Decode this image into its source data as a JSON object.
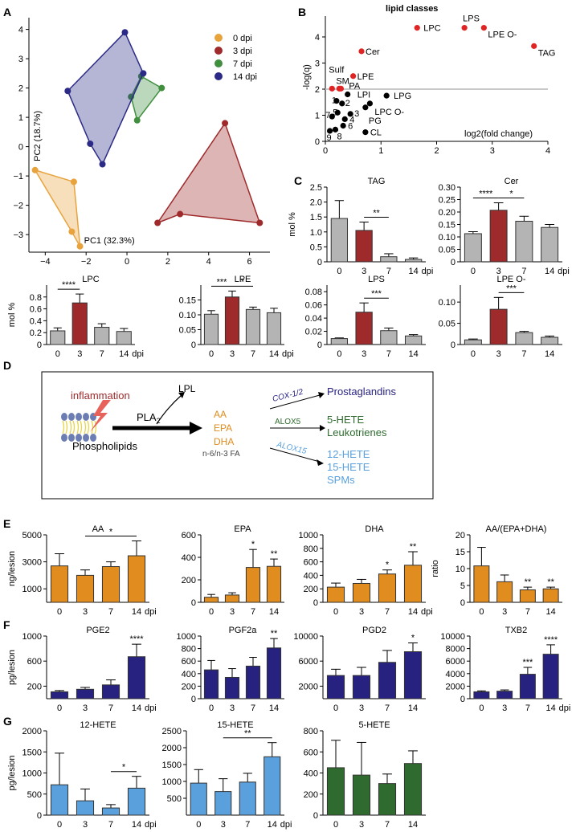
{
  "panel_labels": {
    "A": "A",
    "B": "B",
    "C": "C",
    "D": "D",
    "E": "E",
    "F": "F",
    "G": "G"
  },
  "colors": {
    "d0": "#e8a33d",
    "d3": "#9e2a2b",
    "d7": "#3f8f3f",
    "d14": "#2b2a86",
    "gray": "#b4b4b4",
    "orange": "#e08c1e",
    "navy": "#272280",
    "lightblue": "#5aa0dc",
    "green": "#2f6b2f",
    "red": "#e02424",
    "black": "#000000"
  },
  "pca": {
    "xlabel": "PC1 (32.3%)",
    "ylabel": "PC2 (18.7%)",
    "xticks": [
      "−4",
      "−2",
      "0",
      "2",
      "4",
      "6"
    ],
    "yticks": [
      "−3",
      "−2",
      "−1",
      "0",
      "1",
      "2",
      "3",
      "4"
    ],
    "legend": [
      {
        "key": "d0",
        "label": "0 dpi"
      },
      {
        "key": "d3",
        "label": "3 dpi"
      },
      {
        "key": "d7",
        "label": "7 dpi"
      },
      {
        "key": "d14",
        "label": "14 dpi"
      }
    ]
  },
  "volcano": {
    "title": "lipid classes",
    "xlabel": "log2(fold change)",
    "ylabel": "-log(q)",
    "xticks": [
      "0",
      "1",
      "2",
      "3",
      "4"
    ],
    "yticks": [
      "0",
      "1",
      "2",
      "3",
      "4"
    ],
    "red_labels": [
      "LPC",
      "LPS",
      "LPE O-",
      "TAG",
      "Cer",
      "LPE",
      "Sulf",
      "SM",
      "PA"
    ],
    "black_labels": [
      "LPI",
      "LPG",
      "LPC O-",
      "PG",
      "CL",
      "1",
      "2",
      "3",
      "4",
      "5",
      "6",
      "7",
      "8",
      "9"
    ]
  },
  "chart_data": [
    {
      "type": "scatter",
      "title": "PCA",
      "xlabel": "PC1 (32.3%)",
      "ylabel": "PC2 (18.7%)",
      "xlim": [
        -4.8,
        7
      ],
      "ylim": [
        -3.6,
        4.4
      ],
      "series": [
        {
          "name": "0 dpi",
          "points": [
            [
              -4.5,
              -0.8
            ],
            [
              -2.6,
              -1.2
            ],
            [
              -2.7,
              -2.9
            ],
            [
              -2.3,
              -3.4
            ]
          ]
        },
        {
          "name": "3 dpi",
          "points": [
            [
              1.5,
              -2.6
            ],
            [
              2.6,
              -2.3
            ],
            [
              4.8,
              0.8
            ],
            [
              6.5,
              -2.6
            ]
          ]
        },
        {
          "name": "7 dpi",
          "points": [
            [
              0.2,
              1.7
            ],
            [
              0.7,
              2.4
            ],
            [
              1.7,
              2.0
            ],
            [
              0.5,
              0.9
            ]
          ]
        },
        {
          "name": "14 dpi",
          "points": [
            [
              -2.9,
              1.9
            ],
            [
              -0.1,
              3.9
            ],
            [
              0.8,
              2.5
            ],
            [
              -1.2,
              -0.6
            ],
            [
              -1.8,
              0.1
            ]
          ]
        }
      ]
    },
    {
      "type": "scatter",
      "title": "lipid classes",
      "xlabel": "log2(fold change)",
      "ylabel": "-log(q)",
      "xlim": [
        0,
        4
      ],
      "ylim": [
        0,
        4.8
      ],
      "threshold": 2,
      "points": [
        {
          "label": "LPC",
          "x": 1.65,
          "y": 4.35,
          "sig": true
        },
        {
          "label": "LPS",
          "x": 2.5,
          "y": 4.35,
          "sig": true
        },
        {
          "label": "LPE O-",
          "x": 2.85,
          "y": 4.35,
          "sig": true
        },
        {
          "label": "TAG",
          "x": 3.75,
          "y": 3.65,
          "sig": true
        },
        {
          "label": "Cer",
          "x": 0.65,
          "y": 3.45,
          "sig": true
        },
        {
          "label": "LPE",
          "x": 0.5,
          "y": 2.5,
          "sig": true
        },
        {
          "label": "Sulf",
          "x": 0.12,
          "y": 2.02,
          "sig": true
        },
        {
          "label": "SM",
          "x": 0.25,
          "y": 2.02,
          "sig": true
        },
        {
          "label": "PA",
          "x": 0.28,
          "y": 2.02,
          "sig": true
        },
        {
          "label": "LPI",
          "x": 0.4,
          "y": 1.8,
          "sig": false
        },
        {
          "label": "LPG",
          "x": 1.1,
          "y": 1.75,
          "sig": false
        },
        {
          "label": "LPC O-",
          "x": 0.8,
          "y": 1.45,
          "sig": false
        },
        {
          "label": "PG",
          "x": 0.72,
          "y": 1.3,
          "sig": false
        },
        {
          "label": "CL",
          "x": 0.72,
          "y": 0.35,
          "sig": false
        },
        {
          "label": "1",
          "x": 0.2,
          "y": 1.55,
          "sig": false
        },
        {
          "label": "2",
          "x": 0.3,
          "y": 1.45,
          "sig": false
        },
        {
          "label": "3",
          "x": 0.45,
          "y": 1.05,
          "sig": false
        },
        {
          "label": "4",
          "x": 0.35,
          "y": 0.85,
          "sig": false
        },
        {
          "label": "5",
          "x": 0.22,
          "y": 1.1,
          "sig": false
        },
        {
          "label": "6",
          "x": 0.32,
          "y": 0.6,
          "sig": false
        },
        {
          "label": "7",
          "x": 0.12,
          "y": 0.95,
          "sig": false
        },
        {
          "label": "8",
          "x": 0.18,
          "y": 0.45,
          "sig": false
        },
        {
          "label": "9",
          "x": 0.08,
          "y": 0.4,
          "sig": false
        }
      ]
    },
    {
      "type": "bar",
      "title": "LPC",
      "ylabel": "mol %",
      "categories": [
        "0",
        "3",
        "7",
        "14"
      ],
      "values": [
        0.23,
        0.7,
        0.29,
        0.22
      ],
      "errors": [
        0.05,
        0.15,
        0.06,
        0.05
      ],
      "ylim": [
        0,
        1.0
      ],
      "yticks": [
        "0",
        "0.2",
        "0.4",
        "0.6",
        "0.8"
      ],
      "sig": [
        {
          "from": "0",
          "to": "3",
          "label": "****"
        }
      ]
    },
    {
      "type": "bar",
      "title": "LPE",
      "ylabel": "",
      "categories": [
        "0",
        "3",
        "7",
        "14"
      ],
      "values": [
        0.102,
        0.16,
        0.118,
        0.107
      ],
      "errors": [
        0.012,
        0.02,
        0.008,
        0.015
      ],
      "ylim": [
        0,
        0.2
      ],
      "yticks": [
        "0",
        "0.05",
        "0.10",
        "0.15"
      ],
      "sig": [
        {
          "from": "0",
          "to": "3",
          "label": "***"
        },
        {
          "from": "3",
          "to": "7",
          "label": "*"
        }
      ]
    },
    {
      "type": "bar",
      "title": "TAG",
      "ylabel": "mol %",
      "categories": [
        "0",
        "3",
        "7",
        "14"
      ],
      "values": [
        1.45,
        1.05,
        0.17,
        0.08
      ],
      "errors": [
        0.6,
        0.28,
        0.1,
        0.05
      ],
      "ylim": [
        0,
        2.5
      ],
      "yticks": [
        "0",
        "0.5",
        "1.0",
        "1.5",
        "2.0",
        "2.5"
      ],
      "sig": [
        {
          "from": "3",
          "to": "7",
          "label": "**"
        }
      ]
    },
    {
      "type": "bar",
      "title": "Cer",
      "ylabel": "",
      "categories": [
        "0",
        "3",
        "7",
        "14"
      ],
      "values": [
        0.113,
        0.207,
        0.163,
        0.138
      ],
      "errors": [
        0.008,
        0.03,
        0.02,
        0.012
      ],
      "ylim": [
        0,
        0.3
      ],
      "yticks": [
        "0",
        "0.05",
        "0.10",
        "0.15",
        "0.20",
        "0.25",
        "0.30"
      ],
      "sig": [
        {
          "from": "0",
          "to": "3",
          "label": "****"
        },
        {
          "from": "3",
          "to": "7",
          "label": "*"
        }
      ]
    },
    {
      "type": "bar",
      "title": "LPS",
      "ylabel": "",
      "categories": [
        "0",
        "3",
        "7",
        "14"
      ],
      "values": [
        0.009,
        0.049,
        0.021,
        0.013
      ],
      "errors": [
        0.001,
        0.014,
        0.004,
        0.002
      ],
      "ylim": [
        0,
        0.09
      ],
      "yticks": [
        "0",
        "0.02",
        "0.04",
        "0.06",
        "0.08"
      ],
      "sig": [
        {
          "from": "3",
          "to": "7",
          "label": "***"
        }
      ]
    },
    {
      "type": "bar",
      "title": "LPE O-",
      "ylabel": "",
      "categories": [
        "0",
        "3",
        "7",
        "14"
      ],
      "values": [
        0.011,
        0.083,
        0.028,
        0.017
      ],
      "errors": [
        0.002,
        0.028,
        0.003,
        0.003
      ],
      "ylim": [
        0,
        0.14
      ],
      "yticks": [
        "0",
        "0.05",
        "0.10"
      ],
      "sig": [
        {
          "from": "3",
          "to": "7",
          "label": "***"
        }
      ]
    },
    {
      "type": "bar",
      "title": "AA",
      "ylabel": "ng/lesion",
      "categories": [
        "0",
        "3",
        "7",
        "14"
      ],
      "values": [
        2700,
        2000,
        2650,
        3450
      ],
      "errors": [
        900,
        400,
        350,
        1100
      ],
      "ylim": [
        0,
        5000
      ],
      "yticks": [
        "1000",
        "3000",
        "5000"
      ],
      "sig": [
        {
          "from": "3",
          "to": "14",
          "label": "*"
        }
      ]
    },
    {
      "type": "bar",
      "title": "EPA",
      "ylabel": "",
      "categories": [
        "0",
        "3",
        "7",
        "14"
      ],
      "values": [
        45,
        65,
        310,
        320
      ],
      "errors": [
        25,
        20,
        160,
        65
      ],
      "ylim": [
        0,
        600
      ],
      "yticks": [
        "0",
        "200",
        "400",
        "600"
      ],
      "sig": [
        {
          "at": "7",
          "label": "*"
        },
        {
          "at": "14",
          "label": "**"
        }
      ]
    },
    {
      "type": "bar",
      "title": "DHA",
      "ylabel": "",
      "categories": [
        "0",
        "3",
        "7",
        "14"
      ],
      "values": [
        225,
        280,
        420,
        550
      ],
      "errors": [
        60,
        60,
        60,
        200
      ],
      "ylim": [
        0,
        1000
      ],
      "yticks": [
        "0",
        "200",
        "400",
        "600",
        "800",
        "1000"
      ],
      "sig": [
        {
          "at": "7",
          "label": "*"
        },
        {
          "at": "14",
          "label": "**"
        }
      ]
    },
    {
      "type": "bar",
      "title": "AA/(EPA+DHA)",
      "ylabel": "ratio",
      "categories": [
        "0",
        "3",
        "7",
        "14"
      ],
      "values": [
        10.8,
        6.1,
        3.7,
        4.0
      ],
      "errors": [
        5.5,
        2.0,
        0.8,
        0.5
      ],
      "ylim": [
        0,
        20
      ],
      "yticks": [
        "0",
        "5",
        "10",
        "15",
        "20"
      ],
      "sig": [
        {
          "at": "7",
          "label": "**"
        },
        {
          "at": "14",
          "label": "**"
        }
      ]
    },
    {
      "type": "bar",
      "title": "PGE2",
      "ylabel": "pg/lesion",
      "categories": [
        "0",
        "3",
        "7",
        "14"
      ],
      "values": [
        110,
        150,
        220,
        670
      ],
      "errors": [
        20,
        30,
        80,
        200
      ],
      "ylim": [
        0,
        1000
      ],
      "yticks": [
        "200",
        "600",
        "1000"
      ],
      "sig": [
        {
          "at": "14",
          "label": "****"
        }
      ]
    },
    {
      "type": "bar",
      "title": "PGF2a",
      "ylabel": "",
      "categories": [
        "0",
        "3",
        "7",
        "14"
      ],
      "values": [
        460,
        340,
        520,
        810
      ],
      "errors": [
        150,
        140,
        140,
        150
      ],
      "ylim": [
        0,
        1000
      ],
      "yticks": [
        "0",
        "200",
        "400",
        "600",
        "800",
        "1000"
      ],
      "sig": [
        {
          "at": "14",
          "label": "**"
        }
      ]
    },
    {
      "type": "bar",
      "title": "PGD2",
      "ylabel": "",
      "categories": [
        "0",
        "3",
        "7",
        "14"
      ],
      "values": [
        3700,
        3700,
        5800,
        7500
      ],
      "errors": [
        1000,
        1300,
        1900,
        1400
      ],
      "ylim": [
        0,
        10000
      ],
      "yticks": [
        "2000",
        "6000",
        "10000"
      ],
      "sig": [
        {
          "at": "14",
          "label": "*"
        }
      ]
    },
    {
      "type": "bar",
      "title": "TXB2",
      "ylabel": "",
      "categories": [
        "0",
        "3",
        "7",
        "14"
      ],
      "values": [
        1100,
        1200,
        3900,
        7100
      ],
      "errors": [
        150,
        200,
        1100,
        1500
      ],
      "ylim": [
        0,
        10000
      ],
      "yticks": [
        "0",
        "2000",
        "4000",
        "6000",
        "8000",
        "10000"
      ],
      "sig": [
        {
          "at": "7",
          "label": "***"
        },
        {
          "at": "14",
          "label": "****"
        }
      ]
    },
    {
      "type": "bar",
      "title": "12-HETE",
      "ylabel": "pg/lesion",
      "categories": [
        "0",
        "3",
        "7",
        "14"
      ],
      "values": [
        720,
        340,
        170,
        640
      ],
      "errors": [
        750,
        280,
        80,
        280
      ],
      "ylim": [
        0,
        2000
      ],
      "yticks": [
        "0",
        "500",
        "1000",
        "1500",
        "2000"
      ],
      "sig": [
        {
          "from": "7",
          "to": "14",
          "label": "*"
        }
      ]
    },
    {
      "type": "bar",
      "title": "15-HETE",
      "ylabel": "",
      "categories": [
        "0",
        "3",
        "7",
        "14"
      ],
      "values": [
        950,
        700,
        980,
        1730
      ],
      "errors": [
        400,
        380,
        260,
        420
      ],
      "ylim": [
        0,
        2500
      ],
      "yticks": [
        "500",
        "1000",
        "1500",
        "2000",
        "2500"
      ],
      "sig": [
        {
          "from": "3",
          "to": "14",
          "label": "**"
        }
      ]
    },
    {
      "type": "bar",
      "title": "5-HETE",
      "ylabel": "",
      "categories": [
        "0",
        "3",
        "7",
        "14"
      ],
      "values": [
        450,
        380,
        300,
        490
      ],
      "errors": [
        260,
        310,
        90,
        120
      ],
      "ylim": [
        0,
        800
      ],
      "yticks": [
        "0",
        "200",
        "400",
        "600",
        "800"
      ],
      "sig": []
    }
  ],
  "pathway": {
    "inflammation": "inflammation",
    "phospholipids": "Phospholipids",
    "pla2_main": "PLA",
    "pla2_sub": "2",
    "lpl": "LPL",
    "aa": "AA",
    "epa": "EPA",
    "dha": "DHA",
    "fa": "n-6/n-3 FA",
    "cox": "COX-1/2",
    "alox5": "ALOX5",
    "alox15": "ALOX15",
    "prostaglandins": "Prostaglandins",
    "hete5": "5-HETE",
    "leukotrienes": "Leukotrienes",
    "hete12": "12-HETE",
    "hete15": "15-HETE",
    "spms": "SPMs"
  }
}
